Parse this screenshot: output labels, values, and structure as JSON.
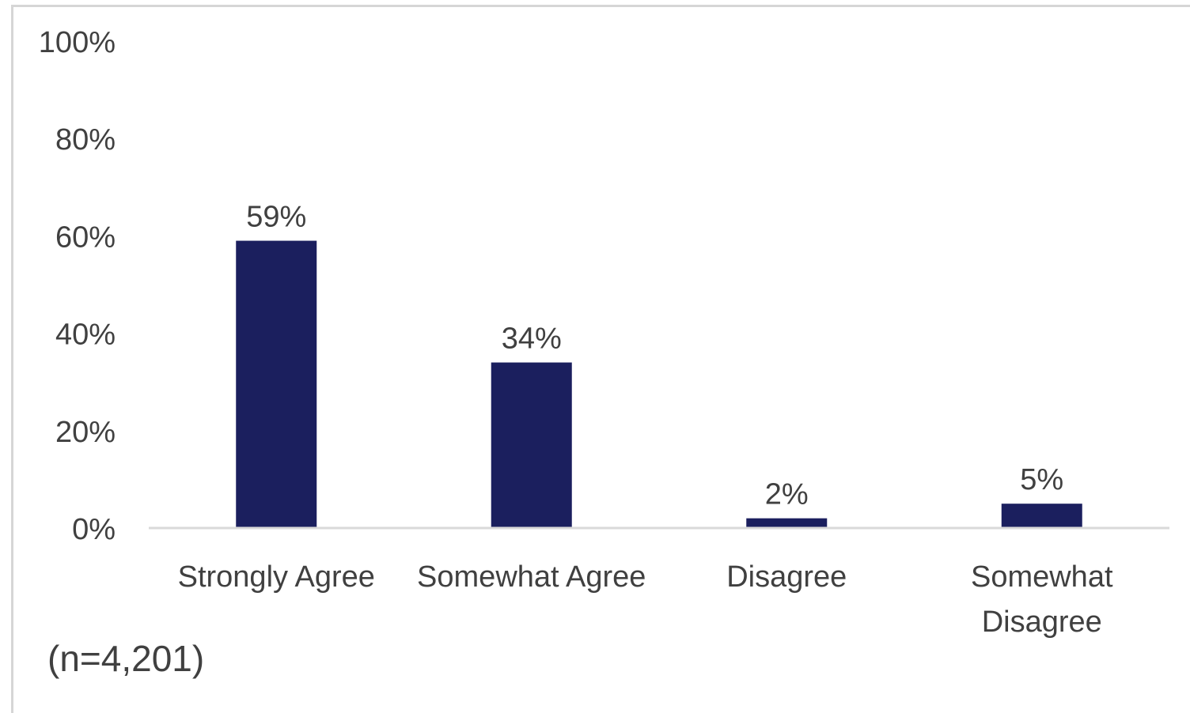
{
  "chart_data": {
    "type": "bar",
    "categories": [
      "Strongly Agree",
      "Somewhat Agree",
      "Disagree",
      "Somewhat Disagree"
    ],
    "category_lines": [
      [
        "Strongly Agree"
      ],
      [
        "Somewhat Agree"
      ],
      [
        "Disagree"
      ],
      [
        "Somewhat",
        "Disagree"
      ]
    ],
    "values": [
      59,
      34,
      2,
      5
    ],
    "data_labels": [
      "59%",
      "34%",
      "2%",
      "5%"
    ],
    "yticks": [
      0,
      20,
      40,
      60,
      80,
      100
    ],
    "ytick_labels": [
      "0%",
      "20%",
      "40%",
      "60%",
      "80%",
      "100%"
    ],
    "ylim": [
      0,
      100
    ],
    "title": "",
    "xlabel": "",
    "ylabel": "",
    "grid": false,
    "legend": "none",
    "bar_color": "#1b1f5e",
    "baseline_color": "#d9d9d9"
  },
  "note": "(n=4,201)"
}
